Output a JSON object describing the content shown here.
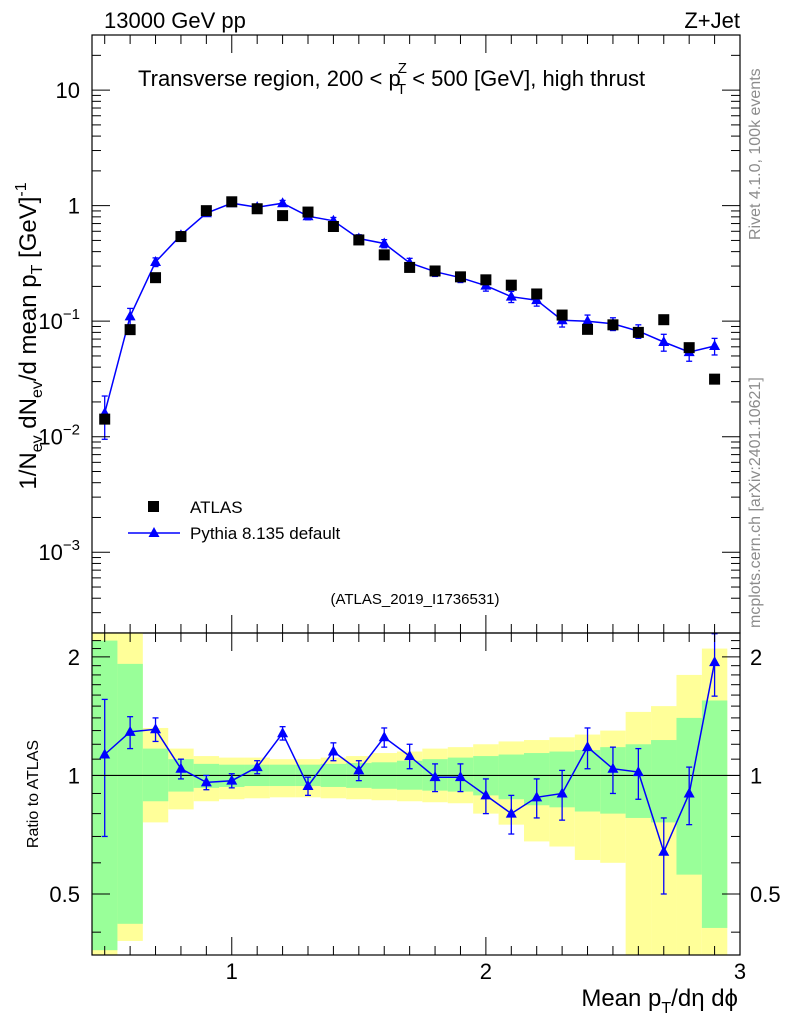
{
  "header": {
    "left": "13000 GeV pp",
    "right": "Z+Jet"
  },
  "side_labels": {
    "rivet": "Rivet 4.1.0,  100k events",
    "mcplots": "mcplots.cern.ch [arXiv:2401.10621]"
  },
  "chart_data": [
    {
      "type": "scatter",
      "panel": "main",
      "title": "Transverse region, 200 < pTZ < 500 [GeV], high thrust",
      "title_parts": {
        "pre": "Transverse region, 200 < p",
        "sup": "Z",
        "sub": "T",
        "post": " < 500 [GeV], high thrust"
      },
      "ylabel": "1/Nev dNev/d mean pT [GeV]-1",
      "yscale": "log",
      "ylim": [
        0.0002,
        30
      ],
      "xlim": [
        0.45,
        3.0
      ],
      "yticks": [
        {
          "v": 0.001,
          "b": "10",
          "e": "−3"
        },
        {
          "v": 0.01,
          "b": "10",
          "e": "−2"
        },
        {
          "v": 0.1,
          "b": "10",
          "e": "−1"
        },
        {
          "v": 1,
          "b": "1",
          "e": ""
        },
        {
          "v": 10,
          "b": "10",
          "e": ""
        }
      ],
      "watermark": "(ATLAS_2019_I1736531)",
      "legend": [
        {
          "label": "ATLAS",
          "marker": "square",
          "color": "#000000"
        },
        {
          "label": "Pythia 8.135 default",
          "marker": "triangle",
          "color": "#0000ff"
        }
      ],
      "series": [
        {
          "name": "ATLAS",
          "color": "#000000",
          "x": [
            0.5,
            0.6,
            0.7,
            0.8,
            0.9,
            1.0,
            1.1,
            1.2,
            1.3,
            1.4,
            1.5,
            1.6,
            1.7,
            1.8,
            1.9,
            2.0,
            2.1,
            2.2,
            2.3,
            2.4,
            2.5,
            2.6,
            2.7,
            2.8,
            2.9
          ],
          "y": [
            0.0142,
            0.0845,
            0.238,
            0.54,
            0.905,
            1.08,
            0.94,
            0.82,
            0.88,
            0.66,
            0.505,
            0.375,
            0.292,
            0.272,
            0.242,
            0.228,
            0.205,
            0.172,
            0.113,
            0.085,
            0.093,
            0.08,
            0.103,
            0.059,
            0.0315
          ]
        },
        {
          "name": "Pythia 8.135 default",
          "color": "#0000ff",
          "x": [
            0.5,
            0.6,
            0.7,
            0.8,
            0.9,
            1.0,
            1.1,
            1.2,
            1.3,
            1.4,
            1.5,
            1.6,
            1.7,
            1.8,
            1.9,
            2.0,
            2.1,
            2.2,
            2.3,
            2.4,
            2.5,
            2.6,
            2.7,
            2.8,
            2.9
          ],
          "y": [
            0.016,
            0.11,
            0.325,
            0.555,
            0.86,
            1.05,
            0.97,
            1.05,
            0.81,
            0.74,
            0.52,
            0.47,
            0.32,
            0.268,
            0.238,
            0.203,
            0.163,
            0.152,
            0.102,
            0.1,
            0.095,
            0.082,
            0.066,
            0.054,
            0.061
          ],
          "err": [
            0.0065,
            0.019,
            0.028,
            0.04,
            0.045,
            0.055,
            0.055,
            0.06,
            0.055,
            0.05,
            0.04,
            0.038,
            0.03,
            0.024,
            0.022,
            0.021,
            0.018,
            0.017,
            0.013,
            0.013,
            0.012,
            0.011,
            0.011,
            0.009,
            0.01
          ]
        }
      ]
    },
    {
      "type": "scatter",
      "panel": "ratio",
      "ylabel": "Ratio to ATLAS",
      "xlabel": "Mean pT/dη dϕ",
      "xlabel_parts": {
        "pre": "Mean p",
        "sub": "T",
        "post": "/dη dϕ"
      },
      "yscale": "log",
      "ylim": [
        0.35,
        2.3
      ],
      "xlim": [
        0.45,
        3.0
      ],
      "yticks": [
        {
          "v": 0.5,
          "label": "0.5"
        },
        {
          "v": 1,
          "label": "1"
        },
        {
          "v": 2,
          "label": "2"
        }
      ],
      "xticks": [
        {
          "v": 1,
          "label": "1"
        },
        {
          "v": 2,
          "label": "2"
        },
        {
          "v": 3,
          "label": "3"
        }
      ],
      "bins": [
        0.45,
        0.55,
        0.65,
        0.75,
        0.85,
        0.95,
        1.05,
        1.15,
        1.25,
        1.35,
        1.45,
        1.55,
        1.65,
        1.75,
        1.85,
        1.95,
        2.05,
        2.15,
        2.25,
        2.35,
        2.45,
        2.55,
        2.65,
        2.75,
        2.85,
        2.95
      ],
      "band_outer": {
        "color": "#ffff99",
        "lo": [
          0.3,
          0.38,
          0.76,
          0.82,
          0.86,
          0.87,
          0.875,
          0.88,
          0.88,
          0.875,
          0.87,
          0.865,
          0.86,
          0.855,
          0.85,
          0.8,
          0.75,
          0.68,
          0.66,
          0.61,
          0.6,
          0.35,
          0.34,
          0.33,
          0.3
        ],
        "hi": [
          2.7,
          2.3,
          1.32,
          1.17,
          1.12,
          1.11,
          1.11,
          1.1,
          1.1,
          1.11,
          1.12,
          1.14,
          1.15,
          1.17,
          1.18,
          1.2,
          1.22,
          1.23,
          1.25,
          1.27,
          1.3,
          1.45,
          1.5,
          1.8,
          2.1
        ]
      },
      "band_inner": {
        "color": "#99ff99",
        "lo": [
          0.36,
          0.42,
          0.86,
          0.91,
          0.93,
          0.935,
          0.94,
          0.94,
          0.94,
          0.935,
          0.93,
          0.925,
          0.92,
          0.915,
          0.91,
          0.89,
          0.87,
          0.84,
          0.83,
          0.81,
          0.8,
          0.78,
          0.76,
          0.56,
          0.41
        ],
        "hi": [
          2.2,
          1.92,
          1.17,
          1.1,
          1.07,
          1.065,
          1.065,
          1.065,
          1.065,
          1.07,
          1.075,
          1.08,
          1.09,
          1.1,
          1.11,
          1.12,
          1.13,
          1.14,
          1.15,
          1.16,
          1.18,
          1.2,
          1.23,
          1.4,
          1.55
        ]
      },
      "series": [
        {
          "name": "Pythia 8.135 default / ATLAS",
          "color": "#0000ff",
          "x": [
            0.5,
            0.6,
            0.7,
            0.8,
            0.9,
            1.0,
            1.1,
            1.2,
            1.3,
            1.4,
            1.5,
            1.6,
            1.7,
            1.8,
            1.9,
            2.0,
            2.1,
            2.2,
            2.3,
            2.4,
            2.5,
            2.6,
            2.7,
            2.8,
            2.9
          ],
          "y": [
            1.13,
            1.29,
            1.31,
            1.04,
            0.96,
            0.97,
            1.05,
            1.28,
            0.94,
            1.15,
            1.03,
            1.25,
            1.12,
            0.99,
            0.99,
            0.89,
            0.8,
            0.88,
            0.9,
            1.18,
            1.04,
            1.02,
            0.64,
            0.9,
            1.94
          ],
          "err_lo": [
            0.43,
            0.12,
            0.09,
            0.06,
            0.04,
            0.04,
            0.04,
            0.05,
            0.05,
            0.06,
            0.06,
            0.07,
            0.08,
            0.08,
            0.08,
            0.09,
            0.09,
            0.1,
            0.13,
            0.14,
            0.14,
            0.15,
            0.14,
            0.15,
            0.35
          ],
          "err_hi": [
            0.43,
            0.12,
            0.09,
            0.06,
            0.04,
            0.04,
            0.04,
            0.05,
            0.05,
            0.06,
            0.06,
            0.07,
            0.08,
            0.08,
            0.08,
            0.09,
            0.09,
            0.1,
            0.13,
            0.14,
            0.14,
            0.15,
            0.14,
            0.15,
            0.35
          ]
        }
      ]
    }
  ]
}
